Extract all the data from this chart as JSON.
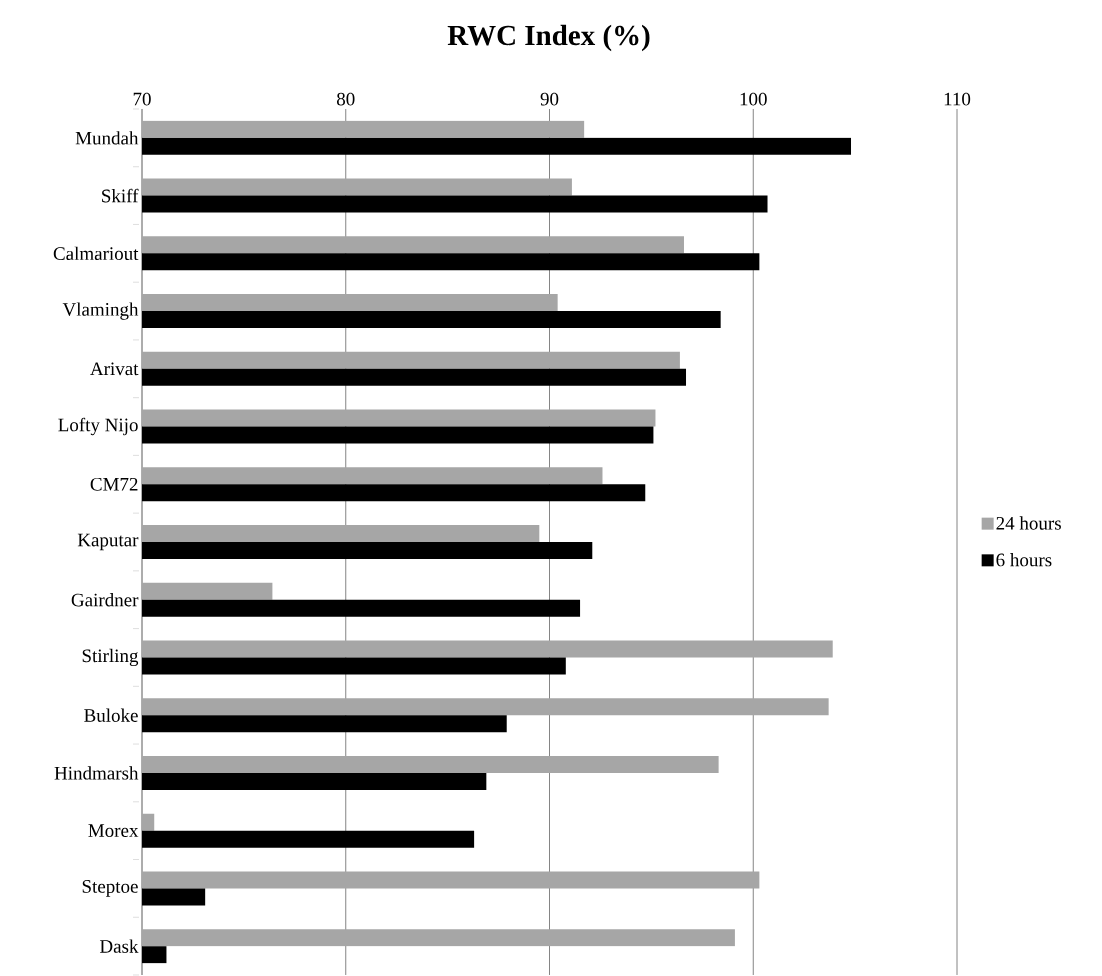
{
  "chart_data": {
    "type": "bar",
    "orientation": "horizontal",
    "title": "RWC Index (%)",
    "categories": [
      "Mundah",
      "Skiff",
      "Calmariout",
      "Vlamingh",
      "Arivat",
      "Lofty Nijo",
      "CM72",
      "Kaputar",
      "Gairdner",
      "Stirling",
      "Buloke",
      "Hindmarsh",
      "Morex",
      "Steptoe",
      "Dask"
    ],
    "series": [
      {
        "name": "24 hours",
        "color": "#a6a6a6",
        "values": [
          91.7,
          91.1,
          96.6,
          90.4,
          96.4,
          95.2,
          92.6,
          89.5,
          76.4,
          103.9,
          103.7,
          98.3,
          70.6,
          100.3,
          99.1
        ]
      },
      {
        "name": "6 hours",
        "color": "#000000",
        "values": [
          104.8,
          100.7,
          100.3,
          98.4,
          96.7,
          95.1,
          94.7,
          92.1,
          91.5,
          90.8,
          87.9,
          86.9,
          86.3,
          73.1,
          71.2
        ]
      }
    ],
    "xlim": [
      70,
      110
    ],
    "xticks": [
      70,
      80,
      90,
      100,
      110
    ],
    "grid": "x",
    "legend": "right"
  }
}
